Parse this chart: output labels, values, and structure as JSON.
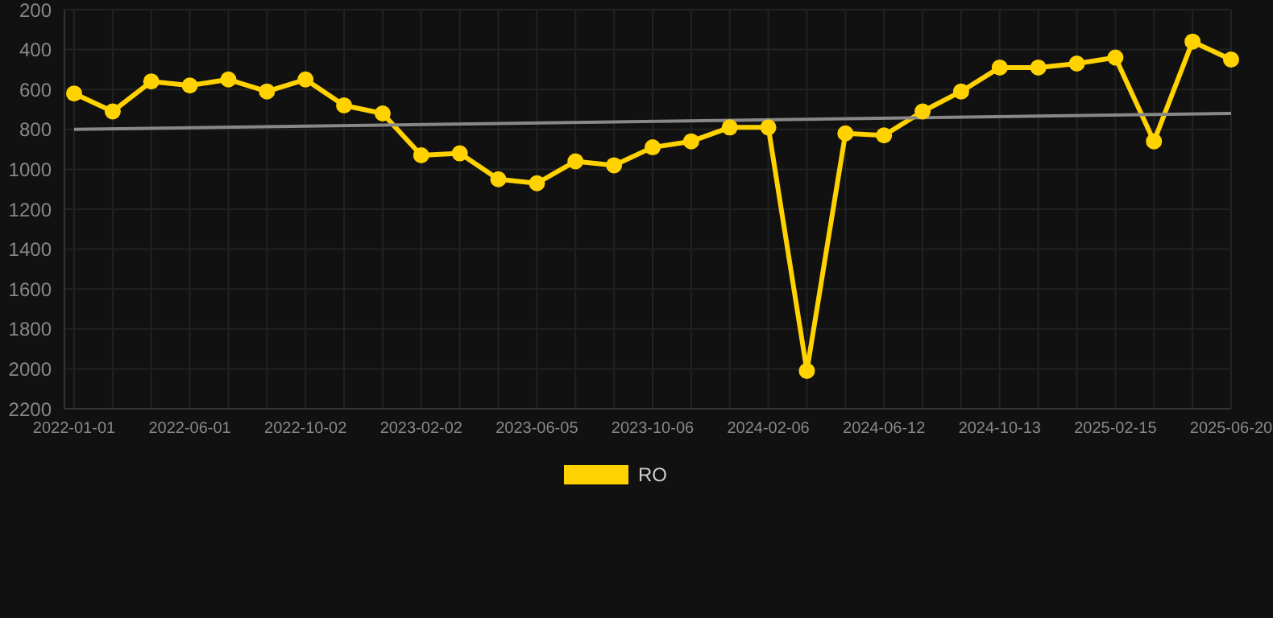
{
  "chart_data": {
    "type": "line",
    "categories": [
      "2022-01-01",
      null,
      null,
      "2022-06-01",
      null,
      null,
      "2022-10-02",
      null,
      null,
      "2023-02-02",
      null,
      null,
      "2023-06-05",
      null,
      null,
      "2023-10-06",
      null,
      null,
      "2024-02-06",
      null,
      null,
      "2024-06-12",
      null,
      null,
      "2024-10-13",
      null,
      null,
      "2025-02-15",
      null,
      null,
      "2025-06-20"
    ],
    "series": [
      {
        "name": "RO",
        "color": "#ffd200",
        "marker": "circle",
        "values": [
          620,
          710,
          560,
          580,
          550,
          610,
          550,
          680,
          720,
          930,
          920,
          1050,
          1070,
          960,
          980,
          890,
          860,
          790,
          790,
          2010,
          820,
          830,
          710,
          610,
          490,
          490,
          470,
          440,
          860,
          360,
          450
        ]
      },
      {
        "color": "#888888",
        "marker": "none",
        "values": [
          800,
          null,
          null,
          null,
          null,
          null,
          null,
          null,
          null,
          null,
          null,
          null,
          null,
          null,
          null,
          null,
          null,
          null,
          null,
          null,
          null,
          null,
          null,
          null,
          null,
          null,
          null,
          null,
          null,
          null,
          720
        ]
      }
    ],
    "ylim": [
      2200,
      200
    ],
    "yticks": [
      200,
      400,
      600,
      800,
      1000,
      1200,
      1400,
      1600,
      1800,
      2000,
      2200
    ],
    "grid": true,
    "legend": "bottom",
    "line_style": "solid"
  }
}
